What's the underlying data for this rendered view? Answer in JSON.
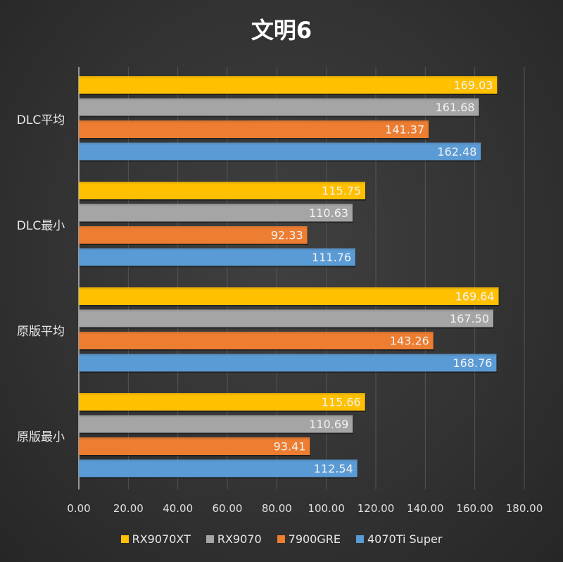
{
  "chart_data": {
    "type": "bar",
    "orientation": "horizontal",
    "title": "文明6",
    "categories": [
      "DLC平均",
      "DLC最小",
      "原版平均",
      "原版最小"
    ],
    "series": [
      {
        "name": "RX9070XT",
        "color": "#ffc000",
        "values": [
          169.03,
          115.75,
          169.64,
          115.66
        ]
      },
      {
        "name": "RX9070",
        "color": "#a5a5a5",
        "values": [
          161.68,
          110.63,
          167.5,
          110.69
        ]
      },
      {
        "name": "7900GRE",
        "color": "#ed7d31",
        "values": [
          141.37,
          92.33,
          143.26,
          93.41
        ]
      },
      {
        "name": "4070Ti Super",
        "color": "#5b9bd5",
        "values": [
          162.48,
          111.76,
          168.76,
          112.54
        ]
      }
    ],
    "xlim": [
      0,
      180
    ],
    "xticks": [
      "0.00",
      "20.00",
      "40.00",
      "60.00",
      "80.00",
      "100.00",
      "120.00",
      "140.00",
      "160.00",
      "180.00"
    ],
    "grid": true,
    "legend": "bottom",
    "data_labels": true
  }
}
